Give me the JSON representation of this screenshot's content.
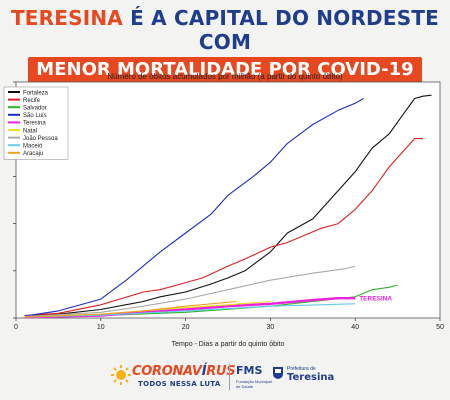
{
  "headline": {
    "line1_city": "TERESINA",
    "line1_rest": " É A CAPITAL DO NORDESTE COM",
    "line2": "MENOR MORTALIDADE POR COVID-19"
  },
  "chart_data": {
    "type": "line",
    "title": "Número de óbitos acumulados por milhão (a partir do quinto óbito)",
    "xlabel": "Tempo - Dias a partir do quinto óbito",
    "ylabel": "",
    "xlim": [
      0,
      50
    ],
    "ylim": [
      0,
      500
    ],
    "xticks": [
      0,
      10,
      20,
      30,
      40,
      50
    ],
    "yticks": [
      0,
      100,
      200,
      300,
      400,
      500
    ],
    "y_tick_labels_visible": false,
    "grid": false,
    "legend_position": "top-left",
    "annotation": "TERESINA",
    "series": [
      {
        "name": "Fortaleza",
        "color": "#111111",
        "x": [
          1,
          5,
          10,
          15,
          17,
          20,
          23,
          25,
          27,
          30,
          32,
          35,
          36,
          40,
          42,
          44,
          46,
          47,
          48,
          49
        ],
        "y": [
          5,
          8,
          18,
          35,
          45,
          55,
          72,
          85,
          100,
          140,
          180,
          210,
          230,
          310,
          360,
          390,
          440,
          465,
          470,
          472
        ]
      },
      {
        "name": "Recife",
        "color": "#e02020",
        "x": [
          1,
          5,
          10,
          15,
          17,
          20,
          22,
          25,
          27,
          30,
          32,
          34,
          36,
          38,
          40,
          42,
          44,
          46,
          47,
          48
        ],
        "y": [
          5,
          10,
          28,
          55,
          60,
          75,
          85,
          110,
          125,
          150,
          160,
          175,
          190,
          200,
          230,
          270,
          320,
          360,
          380,
          380
        ]
      },
      {
        "name": "Salvador",
        "color": "#2bb52b",
        "x": [
          1,
          10,
          20,
          30,
          35,
          40,
          42,
          44,
          45
        ],
        "y": [
          3,
          5,
          12,
          25,
          35,
          45,
          60,
          65,
          70
        ]
      },
      {
        "name": "São Luís",
        "color": "#1a2ccc",
        "x": [
          1,
          5,
          10,
          13,
          15,
          17,
          20,
          23,
          25,
          28,
          30,
          32,
          35,
          38,
          40,
          41
        ],
        "y": [
          4,
          15,
          40,
          80,
          110,
          140,
          180,
          220,
          260,
          300,
          330,
          370,
          410,
          440,
          455,
          465
        ]
      },
      {
        "name": "Teresina",
        "color": "#ee22dd",
        "x": [
          1,
          10,
          15,
          20,
          25,
          30,
          35,
          38,
          40
        ],
        "y": [
          2,
          5,
          12,
          18,
          25,
          30,
          38,
          42,
          42
        ]
      },
      {
        "name": "Natal",
        "color": "#e8e020",
        "x": [
          1,
          10,
          15,
          20,
          25,
          30
        ],
        "y": [
          3,
          8,
          15,
          22,
          28,
          35
        ]
      },
      {
        "name": "João Pessoa",
        "color": "#aaaaaa",
        "x": [
          1,
          10,
          15,
          20,
          25,
          30,
          35,
          39,
          40
        ],
        "y": [
          3,
          12,
          25,
          40,
          60,
          80,
          95,
          105,
          110
        ]
      },
      {
        "name": "Maceió",
        "color": "#66ccee",
        "x": [
          1,
          10,
          20,
          30,
          40
        ],
        "y": [
          2,
          6,
          15,
          25,
          30
        ]
      },
      {
        "name": "Aracaju",
        "color": "#f0a020",
        "x": [
          1,
          10,
          15,
          20,
          26
        ],
        "y": [
          2,
          8,
          15,
          25,
          35
        ]
      }
    ]
  },
  "footer": {
    "corona_a": "CORONAV",
    "corona_b": "Í",
    "corona_c": "RUS",
    "corona_sub": "TODOS NESSA LUTA",
    "fms": "FMS",
    "fms_sub": "Fundação Municipal de Saúde",
    "pref_small": "Prefeitura de",
    "pref_big": "Teresina"
  }
}
